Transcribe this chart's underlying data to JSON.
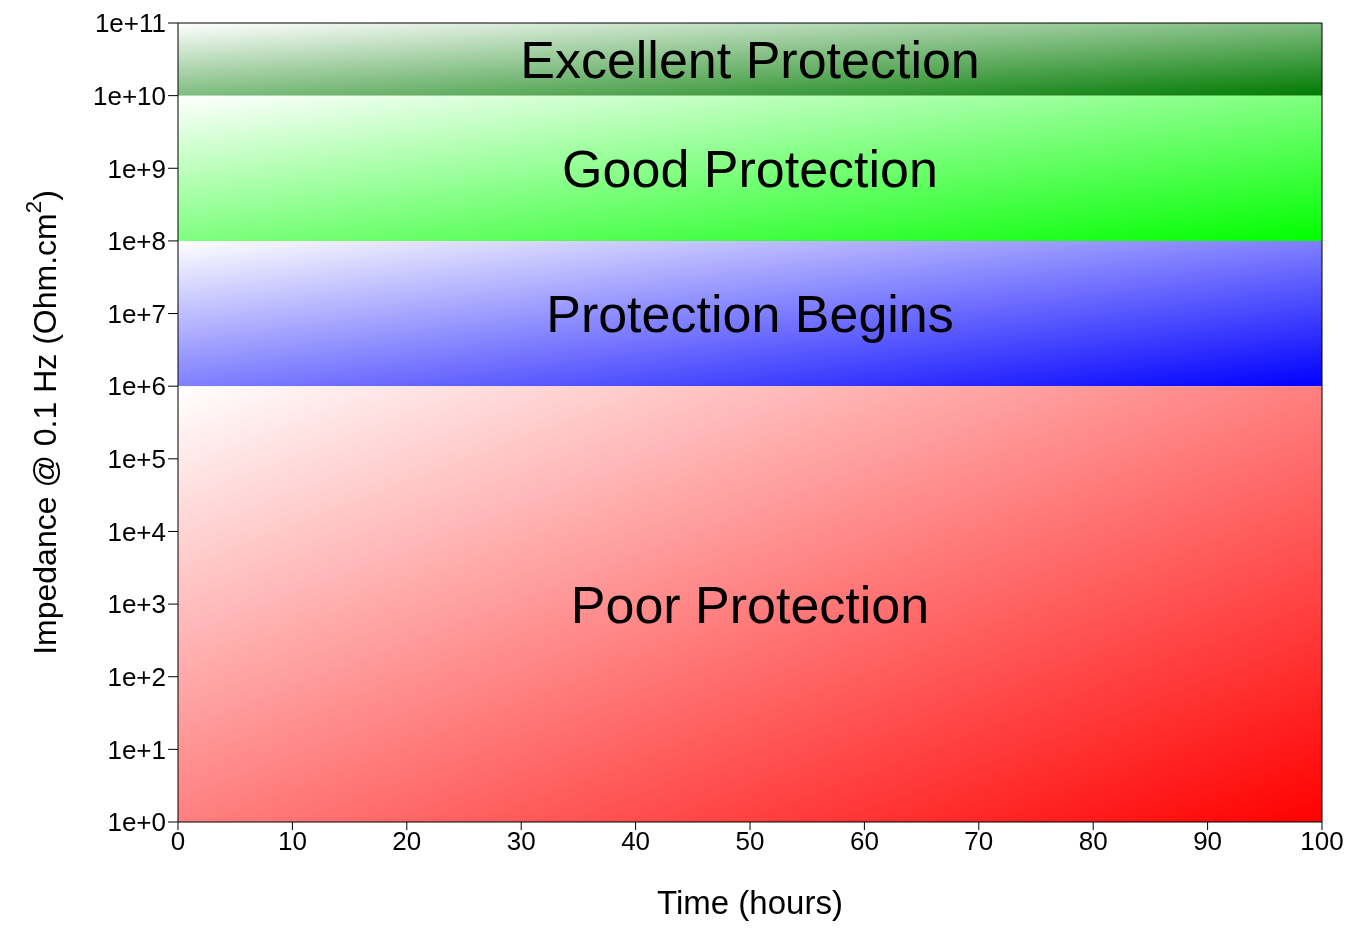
{
  "chart_data": {
    "type": "line",
    "xlabel": "Time (hours)",
    "ylabel": "Impedance @ 0.1 Hz (Ohm.cm$^{2}$)",
    "xlim": [
      0,
      100
    ],
    "xticks": [
      0,
      10,
      20,
      30,
      40,
      50,
      60,
      70,
      80,
      90,
      100
    ],
    "ylim": [
      1,
      100000000000
    ],
    "yticks": [
      {
        "value": 1,
        "label": "1e+0"
      },
      {
        "value": 10,
        "label": "1e+1"
      },
      {
        "value": 100,
        "label": "1e+2"
      },
      {
        "value": 1000,
        "label": "1e+3"
      },
      {
        "value": 10000,
        "label": "1e+4"
      },
      {
        "value": 100000,
        "label": "1e+5"
      },
      {
        "value": 1000000,
        "label": "1e+6"
      },
      {
        "value": 10000000,
        "label": "1e+7"
      },
      {
        "value": 100000000,
        "label": "1e+8"
      },
      {
        "value": 1000000000,
        "label": "1e+9"
      },
      {
        "value": 10000000000,
        "label": "1e+10"
      },
      {
        "value": 100000000000,
        "label": "1e+11"
      }
    ],
    "log": "y",
    "grid": false,
    "bands": [
      {
        "axis": "y",
        "from": 10000000000,
        "to": 100000000000,
        "label": "Excellent Protection",
        "color": "#007a00"
      },
      {
        "axis": "y",
        "from": 100000000,
        "to": 10000000000,
        "label": "Good Protection",
        "color": "#00ff00"
      },
      {
        "axis": "y",
        "from": 1000000,
        "to": 100000000,
        "label": "Protection Begins",
        "color": "#0000ff"
      },
      {
        "axis": "y",
        "from": 1,
        "to": 1000000,
        "label": "Poor Protection",
        "color": "#ff0000"
      }
    ]
  }
}
